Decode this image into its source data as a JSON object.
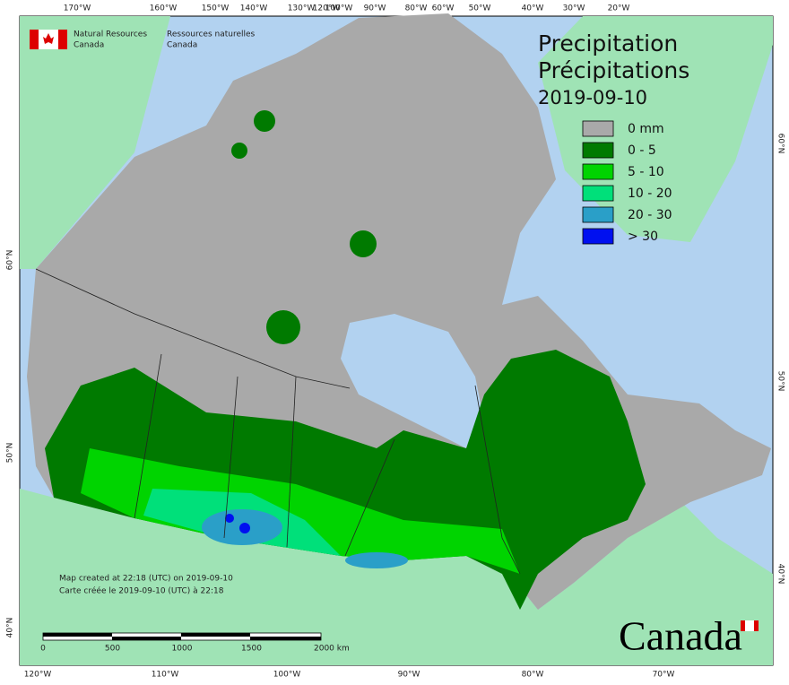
{
  "agency": {
    "en": [
      "Natural Resources",
      "Canada"
    ],
    "fr": [
      "Ressources naturelles",
      "Canada"
    ]
  },
  "title": {
    "en": "Precipitation",
    "fr": "Précipitations",
    "date": "2019-09-10"
  },
  "legend": [
    {
      "label": "0 mm",
      "color": "#a9a9a9"
    },
    {
      "label": "0 - 5",
      "color": "#007a00"
    },
    {
      "label": "5 - 10",
      "color": "#00d400"
    },
    {
      "label": "10 - 20",
      "color": "#00e07a"
    },
    {
      "label": "20 - 30",
      "color": "#2a9fc8"
    },
    {
      "label": "> 30",
      "color": "#0010f0"
    }
  ],
  "graticule": {
    "top": [
      "170°W",
      "160°W",
      "150°W",
      "140°W",
      "130°W",
      "120°W",
      "100°W",
      "90°W",
      "80°W",
      "60°W",
      "50°W",
      "40°W",
      "30°W",
      "20°W"
    ],
    "bottom": [
      "120°W",
      "110°W",
      "100°W",
      "90°W",
      "80°W",
      "70°W"
    ],
    "left": [
      "60°N",
      "50°N",
      "40°N"
    ],
    "right": [
      "60°N",
      "50°N",
      "40°N"
    ]
  },
  "scale_bar": [
    "0",
    "500",
    "1000",
    "1500",
    "2000 km"
  ],
  "credits": [
    "Map created at 22:18 (UTC) on 2019-09-10",
    "Carte créée le 2019-09-10 (UTC) à 22:18"
  ],
  "wordmark": "Canada"
}
